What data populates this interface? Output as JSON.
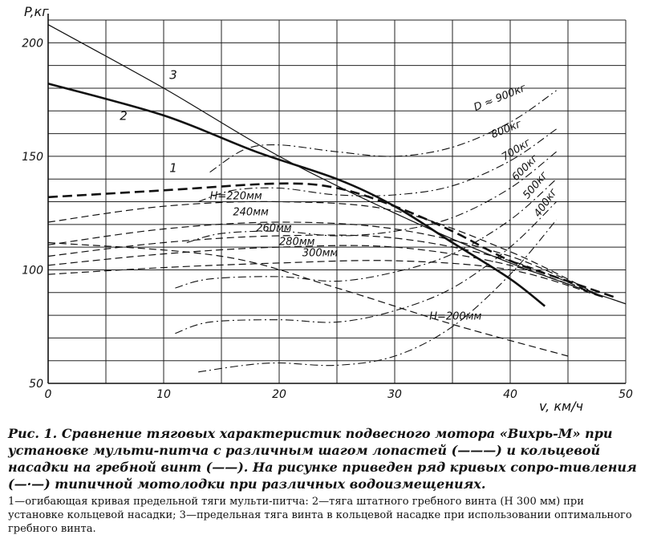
{
  "chart_data": {
    "type": "line",
    "ylabel": "P,кг",
    "xlabel": "v, км/ч",
    "xlim": [
      0,
      50
    ],
    "ylim": [
      50,
      210
    ],
    "x_ticks": [
      "0",
      "10",
      "20",
      "30",
      "40",
      "50"
    ],
    "y_ticks": [
      "50",
      "100",
      "150",
      "200"
    ],
    "grid": true,
    "curve_labels": [
      "1",
      "2",
      "3"
    ],
    "annotations": [
      "H=220мм",
      "240мм",
      "260мм",
      "280мм",
      "300мм",
      "H=200мм",
      "D ≈ 900кг",
      "800кг",
      "700кг",
      "600кг",
      "500кг",
      "400кг"
    ],
    "series": [
      {
        "name": "3",
        "style": "thin",
        "x": [
          0,
          10,
          20,
          30,
          40,
          50
        ],
        "y": [
          208,
          180,
          150,
          125,
          103,
          85
        ]
      },
      {
        "name": "2",
        "style": "bold",
        "x": [
          0,
          10,
          18,
          25,
          30,
          35,
          40,
          43
        ],
        "y": [
          182,
          168,
          152,
          140,
          128,
          112,
          96,
          84
        ]
      },
      {
        "name": "1",
        "style": "dashed-bold",
        "x": [
          0,
          10,
          20,
          25,
          30,
          35,
          40,
          45,
          49
        ],
        "y": [
          132,
          135,
          138,
          136,
          128,
          117,
          104,
          95,
          88
        ]
      },
      {
        "name": "H=220мм",
        "style": "dashed",
        "x": [
          0,
          10,
          20,
          30,
          40,
          48
        ],
        "y": [
          121,
          128,
          130,
          126,
          108,
          88
        ]
      },
      {
        "name": "240мм",
        "style": "dashed",
        "x": [
          0,
          10,
          20,
          30,
          40,
          48
        ],
        "y": [
          111,
          118,
          121,
          118,
          106,
          88
        ]
      },
      {
        "name": "260мм",
        "style": "dashed",
        "x": [
          0,
          10,
          20,
          30,
          40,
          48
        ],
        "y": [
          106,
          112,
          115,
          114,
          104,
          88
        ]
      },
      {
        "name": "280мм",
        "style": "dashed",
        "x": [
          0,
          10,
          20,
          30,
          40,
          48
        ],
        "y": [
          102,
          107,
          110,
          110,
          102,
          88
        ]
      },
      {
        "name": "300мм",
        "style": "dashed",
        "x": [
          0,
          10,
          20,
          30,
          40,
          48
        ],
        "y": [
          98,
          101,
          103,
          104,
          100,
          88
        ]
      },
      {
        "name": "H=200мм",
        "style": "dashed",
        "x": [
          0,
          15,
          25,
          35,
          45
        ],
        "y": [
          112,
          106,
          92,
          76,
          62
        ]
      },
      {
        "name": "D ≈ 900кг",
        "style": "dashdot",
        "x": [
          14,
          17,
          20,
          25,
          30,
          35,
          40,
          44
        ],
        "y": [
          143,
          153,
          155,
          152,
          150,
          154,
          165,
          179
        ]
      },
      {
        "name": "800кг",
        "style": "dashdot",
        "x": [
          13,
          16,
          20,
          25,
          30,
          35,
          40,
          44
        ],
        "y": [
          130,
          135,
          136,
          133,
          133,
          137,
          148,
          162
        ]
      },
      {
        "name": "700кг",
        "style": "dashdot",
        "x": [
          12,
          15,
          20,
          25,
          30,
          35,
          40,
          44
        ],
        "y": [
          112,
          116,
          117,
          115,
          117,
          123,
          136,
          152
        ]
      },
      {
        "name": "600кг",
        "style": "dashdot",
        "x": [
          11,
          14,
          20,
          25,
          30,
          35,
          40,
          44
        ],
        "y": [
          92,
          96,
          97,
          95,
          99,
          107,
          122,
          140
        ]
      },
      {
        "name": "500кг",
        "style": "dashdot",
        "x": [
          11,
          14,
          20,
          25,
          30,
          35,
          40,
          44
        ],
        "y": [
          72,
          77,
          78,
          77,
          82,
          92,
          110,
          130
        ]
      },
      {
        "name": "400кг",
        "style": "dashdot",
        "x": [
          13,
          17,
          20,
          25,
          30,
          35,
          40,
          44
        ],
        "y": [
          55,
          58,
          59,
          58,
          62,
          75,
          98,
          122
        ]
      }
    ]
  },
  "caption": {
    "main": "Рис. 1. Сравнение тяговых характеристик подвесного мотора «Вихрь-М» при установке мульти-питча с различным шагом лопастей (———) и кольцевой насадки на гребной винт (——). На рисунке приведен ряд кривых сопро-тивления (—·—) типичной мотолодки при различных водоизмещениях.",
    "notes": "1—огибающая кривая предельной тяги мульти-питча: 2—тяга штатного гребного винта (Н 300 мм) при установке кольцевой насадки; 3—предельная тяга винта в кольцевой насадке при использовании оптимального гребного винта."
  }
}
